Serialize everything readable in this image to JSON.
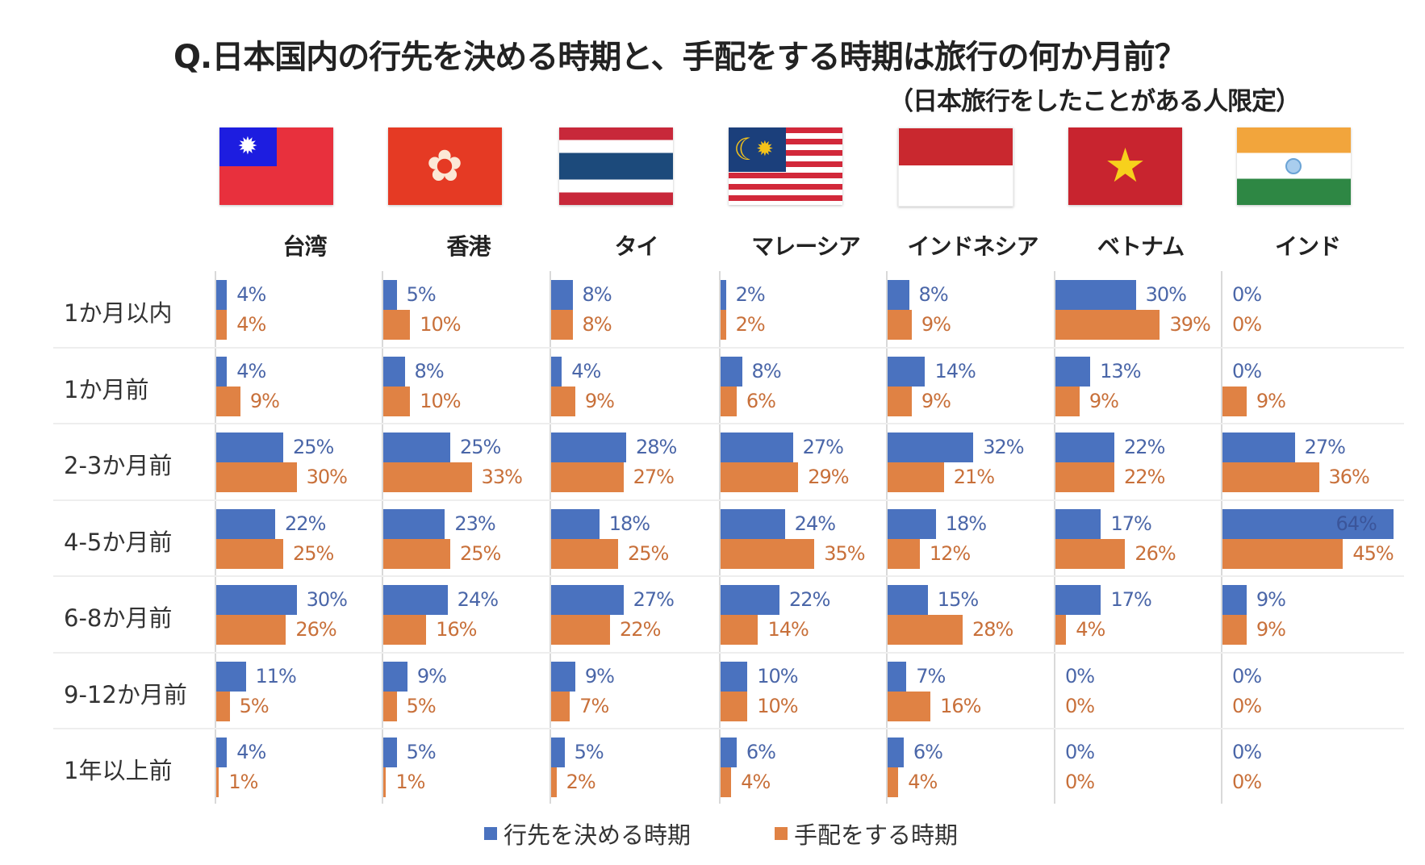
{
  "chart_data": {
    "type": "bar",
    "orientation": "horizontal",
    "title": "Q.日本国内の行先を決める時期と、手配をする時期は旅行の何か月前？",
    "subtitle": "（日本旅行をしたことがある人限定）",
    "panels": [
      "台湾",
      "香港",
      "タイ",
      "マレーシア",
      "インドネシア",
      "ベトナム",
      "インド"
    ],
    "categories": [
      "1か月以内",
      "1か月前",
      "2-3か月前",
      "4-5か月前",
      "6-8か月前",
      "9-12か月前",
      "1年以上前"
    ],
    "series": [
      {
        "name": "行先を決める時期",
        "color": "#4a72bf",
        "values": [
          [
            4,
            4,
            25,
            22,
            30,
            11,
            4
          ],
          [
            5,
            8,
            25,
            23,
            24,
            9,
            5
          ],
          [
            8,
            4,
            28,
            18,
            27,
            9,
            5
          ],
          [
            2,
            8,
            27,
            24,
            22,
            10,
            6
          ],
          [
            8,
            14,
            32,
            18,
            15,
            7,
            6
          ],
          [
            30,
            13,
            22,
            17,
            17,
            0,
            0
          ],
          [
            0,
            0,
            27,
            64,
            9,
            0,
            0
          ]
        ]
      },
      {
        "name": "手配をする時期",
        "color": "#e08244",
        "values": [
          [
            4,
            9,
            30,
            25,
            26,
            5,
            1
          ],
          [
            10,
            10,
            33,
            25,
            16,
            5,
            1
          ],
          [
            8,
            9,
            27,
            25,
            22,
            7,
            2
          ],
          [
            2,
            6,
            29,
            35,
            14,
            10,
            4
          ],
          [
            9,
            9,
            21,
            12,
            28,
            16,
            4
          ],
          [
            39,
            9,
            22,
            26,
            4,
            0,
            0
          ],
          [
            0,
            9,
            36,
            45,
            9,
            0,
            0
          ]
        ]
      }
    ],
    "unit": "%",
    "xlim": [
      0,
      64
    ],
    "legend": "bottom-center"
  }
}
